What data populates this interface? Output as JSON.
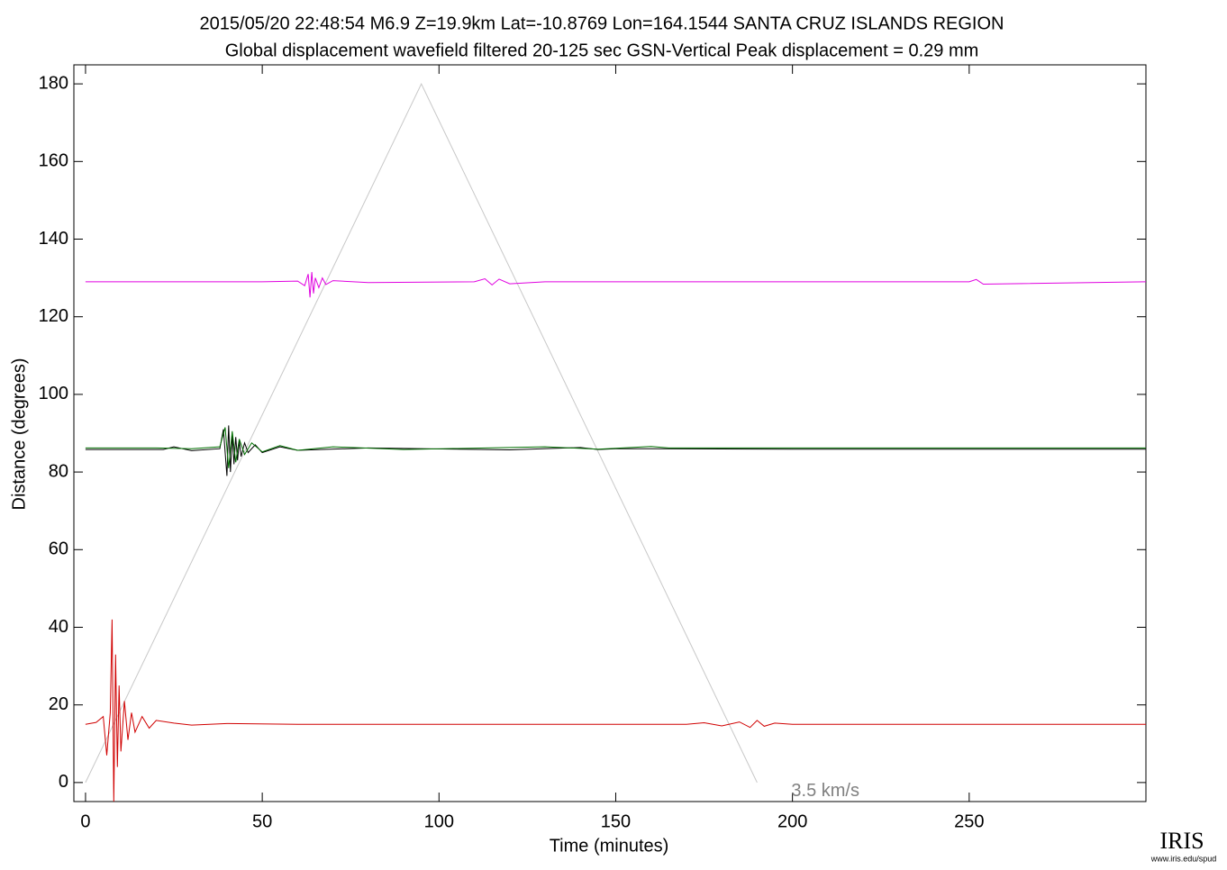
{
  "chart_data": {
    "type": "line",
    "title": "2015/05/20  22:48:54  M6.9  Z=19.9km  Lat=-10.8769 Lon=164.1544  SANTA CRUZ ISLANDS REGION",
    "subtitle": "Global displacement wavefield     filtered 20-125 sec    GSN-Vertical    Peak displacement = 0.29 mm",
    "xlabel": "Time (minutes)",
    "ylabel": "Distance (degrees)",
    "xlim": [
      -3.3,
      300
    ],
    "ylim": [
      -4.9,
      184.9
    ],
    "xticks": [
      0,
      50,
      100,
      150,
      200,
      250
    ],
    "yticks": [
      0,
      20,
      40,
      60,
      80,
      100,
      120,
      140,
      160,
      180
    ],
    "grid": false,
    "series": [
      {
        "name": "3.5 km/s",
        "color": "#c8c8c8",
        "x": [
          0,
          95,
          190
        ],
        "values": [
          0,
          180,
          0
        ]
      },
      {
        "color": "#e000e0",
        "x": [
          0,
          30,
          50,
          60,
          62,
          63,
          63.5,
          64,
          64.5,
          65,
          66,
          67,
          68,
          70,
          80,
          110,
          113,
          115,
          117,
          120,
          130,
          250,
          252,
          254,
          300
        ],
        "values": [
          129,
          129,
          129,
          129.2,
          128,
          131,
          125,
          131.5,
          126,
          130,
          127.5,
          130,
          128.3,
          129.3,
          128.8,
          129,
          129.8,
          128.2,
          129.7,
          128.5,
          129,
          129,
          129.6,
          128.4,
          129
        ]
      },
      {
        "color": "#000000",
        "x": [
          0,
          12,
          22,
          25,
          30,
          38,
          39,
          40,
          40.5,
          41,
          41.5,
          42,
          42.5,
          43,
          43.5,
          44,
          45,
          46,
          48,
          50,
          55,
          60,
          80,
          120,
          140,
          145,
          150,
          160,
          200,
          250,
          300
        ],
        "values": [
          85.8,
          85.8,
          85.8,
          86.5,
          85.5,
          86,
          91,
          79,
          92,
          80,
          90,
          82,
          89,
          83,
          88,
          84,
          87.5,
          85,
          87,
          85,
          86.5,
          85.6,
          86.2,
          85.7,
          86.3,
          85.8,
          86,
          86,
          85.9,
          85.9,
          85.9
        ]
      },
      {
        "color": "#007000",
        "x": [
          0,
          20,
          30,
          38,
          39.5,
          40.5,
          41.5,
          42.5,
          43.5,
          45,
          47,
          50,
          55,
          60,
          70,
          90,
          130,
          145,
          160,
          165,
          200,
          300
        ],
        "values": [
          86.2,
          86.2,
          86,
          86.5,
          91.5,
          81,
          90.5,
          82.5,
          88.5,
          84.5,
          87.5,
          85.2,
          86.8,
          85.6,
          86.5,
          85.8,
          86.5,
          85.9,
          86.6,
          86.2,
          86.2,
          86.2
        ]
      },
      {
        "color": "#d00000",
        "x": [
          0,
          3,
          5,
          6,
          7,
          7.5,
          8,
          8.5,
          9,
          9.5,
          10,
          11,
          12,
          13,
          14,
          16,
          18,
          20,
          25,
          30,
          40,
          60,
          100,
          170,
          175,
          180,
          185,
          188,
          190,
          192,
          195,
          200,
          250,
          300
        ],
        "values": [
          15,
          15.5,
          17,
          7,
          18,
          42,
          -5,
          33,
          4,
          25,
          8,
          21,
          11,
          18,
          13,
          17,
          14,
          16,
          15.3,
          14.8,
          15.2,
          15,
          15,
          15,
          15.4,
          14.6,
          15.6,
          14.2,
          16,
          14.5,
          15.3,
          15,
          15,
          15
        ]
      }
    ],
    "logo": {
      "text": "IRIS",
      "url": "www.iris.edu/spud"
    }
  }
}
